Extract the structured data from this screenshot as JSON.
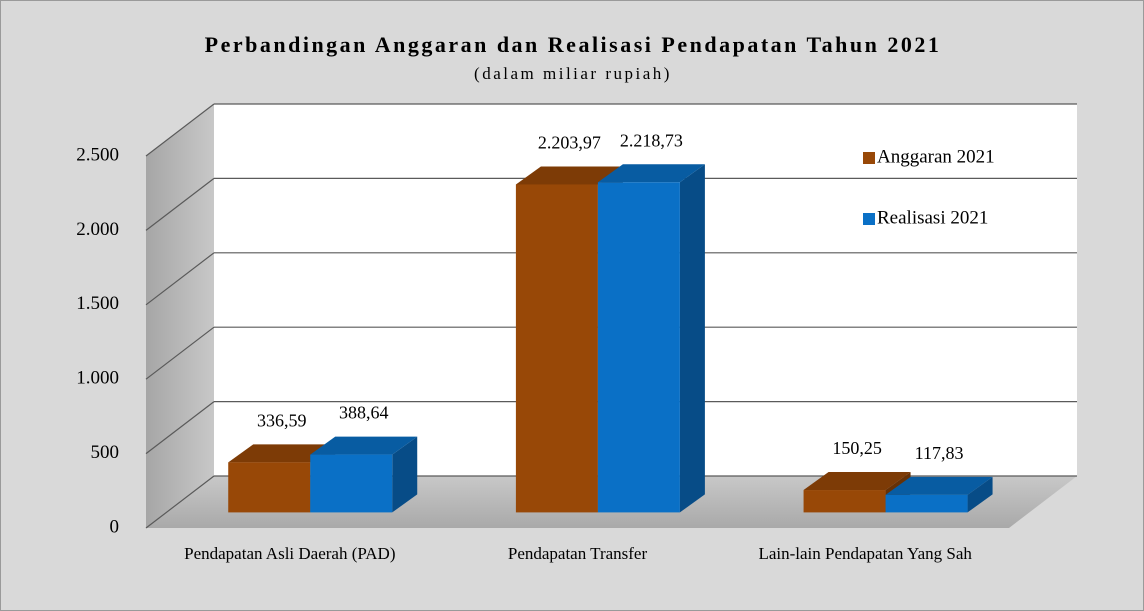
{
  "chart_data": {
    "type": "bar3d",
    "title": "Perbandingan Anggaran dan Realisasi Pendapatan Tahun 2021",
    "subtitle": "(dalam miliar rupiah)",
    "categories": [
      "Pendapatan Asli Daerah (PAD)",
      "Pendapatan Transfer",
      "Lain-lain Pendapatan Yang Sah"
    ],
    "series": [
      {
        "name": "Anggaran 2021",
        "color": "#984807",
        "values": [
          336.59,
          2203.97,
          150.25
        ],
        "value_labels": [
          "336,59",
          "2.203,97",
          "150,25"
        ]
      },
      {
        "name": "Realisasi 2021",
        "color": "#0a70c6",
        "values": [
          388.64,
          2218.73,
          117.83
        ],
        "value_labels": [
          "388,64",
          "2.218,73",
          "117,83"
        ]
      }
    ],
    "ylim": [
      0,
      2500
    ],
    "yticks": [
      0,
      500,
      {
        "value": 1000,
        "label": "1.000"
      },
      {
        "value": 1500,
        "label": "1.500"
      },
      {
        "value": 2000,
        "label": "2.000"
      },
      {
        "value": 2500,
        "label": "2.500"
      }
    ],
    "grid": true,
    "legend": "top-right"
  }
}
